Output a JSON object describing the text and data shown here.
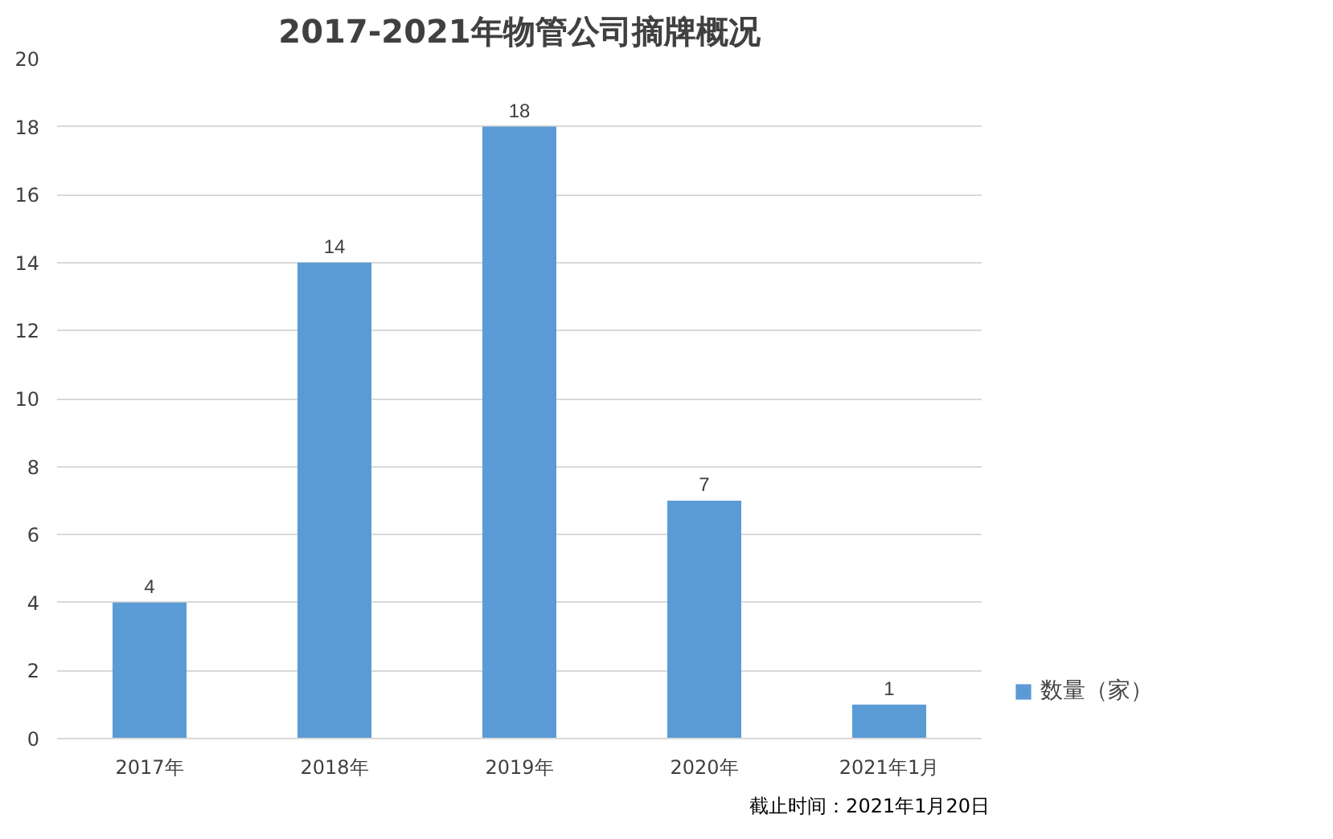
{
  "chart_data": {
    "type": "bar",
    "title": "2017-2021年物管公司摘牌概况",
    "categories": [
      "2017年",
      "2018年",
      "2019年",
      "2020年",
      "2021年1月"
    ],
    "series": [
      {
        "name": "数量（家）",
        "color": "#5b9bd5",
        "values": [
          4,
          14,
          18,
          7,
          1
        ]
      }
    ],
    "ylim": [
      0,
      20
    ],
    "yticks": [
      0,
      2,
      4,
      6,
      8,
      10,
      12,
      14,
      16,
      18,
      20
    ],
    "grid": "y",
    "legend": "right",
    "data_labels": true,
    "annotations": [
      "截止时间：2021年1月20日"
    ]
  }
}
